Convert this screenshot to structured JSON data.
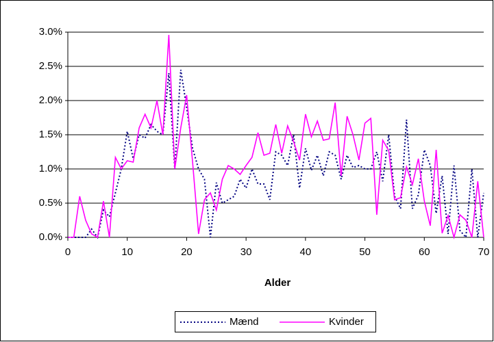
{
  "chart_data": {
    "type": "line",
    "xlabel": "Alder",
    "x": [
      0,
      1,
      2,
      3,
      4,
      5,
      6,
      7,
      8,
      9,
      10,
      11,
      12,
      13,
      14,
      15,
      16,
      17,
      18,
      19,
      20,
      21,
      22,
      23,
      24,
      25,
      26,
      27,
      28,
      29,
      30,
      31,
      32,
      33,
      34,
      35,
      36,
      37,
      38,
      39,
      40,
      41,
      42,
      43,
      44,
      45,
      46,
      47,
      48,
      49,
      50,
      51,
      52,
      53,
      54,
      55,
      56,
      57,
      58,
      59,
      60,
      61,
      62,
      63,
      64,
      65,
      66,
      67,
      68,
      69,
      70
    ],
    "series": [
      {
        "name": "Mænd",
        "color": "#000080",
        "dash": true,
        "values": [
          0,
          0,
          0,
          0,
          0.12,
          0,
          0.4,
          0.3,
          0.65,
          1.0,
          1.55,
          1.15,
          1.5,
          1.45,
          1.65,
          1.55,
          1.5,
          2.4,
          1.0,
          2.45,
          1.9,
          1.3,
          1.0,
          0.85,
          0,
          0.8,
          0.5,
          0.55,
          0.6,
          0.85,
          0.72,
          1.0,
          0.78,
          0.78,
          0.55,
          1.25,
          1.2,
          1.05,
          1.5,
          0.72,
          1.3,
          0.98,
          1.2,
          0.9,
          1.25,
          1.2,
          0.85,
          1.2,
          1.02,
          1.05,
          1.0,
          1.0,
          1.25,
          0.82,
          1.5,
          0.6,
          0.42,
          1.72,
          0.42,
          0.62,
          1.28,
          1.05,
          0.35,
          0.9,
          0.05,
          1.05,
          0.1,
          0,
          1.0,
          0,
          0.65
        ]
      },
      {
        "name": "Kvinder",
        "color": "#ff00ff",
        "dash": false,
        "values": [
          0,
          0,
          0.6,
          0.25,
          0.05,
          0,
          0.53,
          0,
          1.17,
          1.0,
          1.12,
          1.1,
          1.6,
          1.8,
          1.6,
          2.0,
          1.5,
          2.96,
          1.0,
          1.6,
          2.08,
          1.1,
          0.05,
          0.55,
          0.65,
          0.4,
          0.85,
          1.05,
          1.0,
          0.92,
          1.05,
          1.17,
          1.53,
          1.2,
          1.23,
          1.65,
          1.23,
          1.63,
          1.4,
          1.13,
          1.8,
          1.47,
          1.7,
          1.42,
          1.44,
          1.97,
          0.9,
          1.77,
          1.5,
          1.13,
          1.67,
          1.74,
          0.33,
          1.42,
          1.27,
          0.55,
          0.58,
          1.03,
          0.77,
          1.15,
          0.53,
          0.17,
          1.28,
          0.06,
          0.32,
          0,
          0.33,
          0.25,
          0,
          0.82,
          0
        ]
      }
    ],
    "xlim": [
      0,
      70
    ],
    "xticks": [
      0,
      10,
      20,
      30,
      40,
      50,
      60,
      70
    ],
    "ylim": [
      0,
      3
    ],
    "yticks": [
      {
        "value": 0,
        "label": "0.0%"
      },
      {
        "value": 0.5,
        "label": "0.5%"
      },
      {
        "value": 1,
        "label": "1.0%"
      },
      {
        "value": 1.5,
        "label": "1.5%"
      },
      {
        "value": 2,
        "label": "2.0%"
      },
      {
        "value": 2.5,
        "label": "2.5%"
      },
      {
        "value": 3,
        "label": "3.0%"
      }
    ],
    "grid": true,
    "legend": "bottom"
  }
}
